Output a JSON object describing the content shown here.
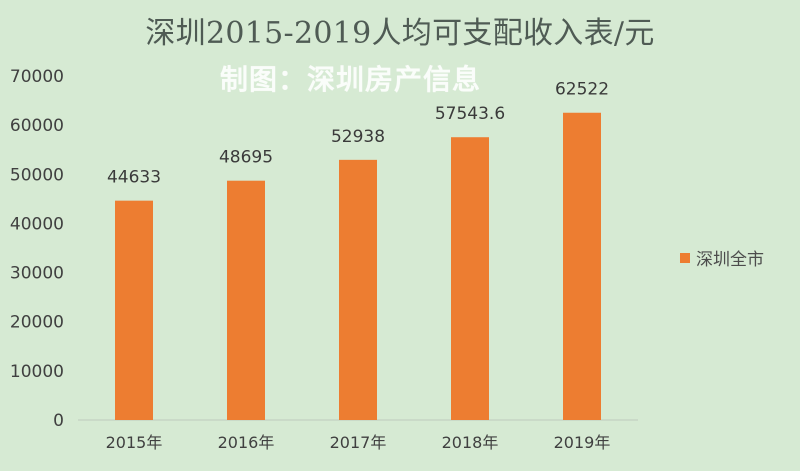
{
  "title": "深圳2015-2019人均可支配收入表/元",
  "watermark": "制图：深圳房产信息",
  "legend": {
    "label": "深圳全市",
    "position": "right"
  },
  "colors": {
    "background": "#d6ead3",
    "bar": "#ed7d31",
    "axis_text": "#404040",
    "label_text": "#3a3a3a"
  },
  "chart_data": {
    "type": "bar",
    "categories": [
      "2015年",
      "2016年",
      "2017年",
      "2018年",
      "2019年"
    ],
    "series": [
      {
        "name": "深圳全市",
        "values": [
          44633,
          48695,
          52938,
          57543.6,
          62522
        ]
      }
    ],
    "data_labels": [
      "44633",
      "48695",
      "52938",
      "57543.6",
      "62522"
    ],
    "ylim": [
      0,
      70000
    ],
    "yticks": [
      0,
      10000,
      20000,
      30000,
      40000,
      50000,
      60000,
      70000
    ],
    "grid": false,
    "legend": "right"
  }
}
